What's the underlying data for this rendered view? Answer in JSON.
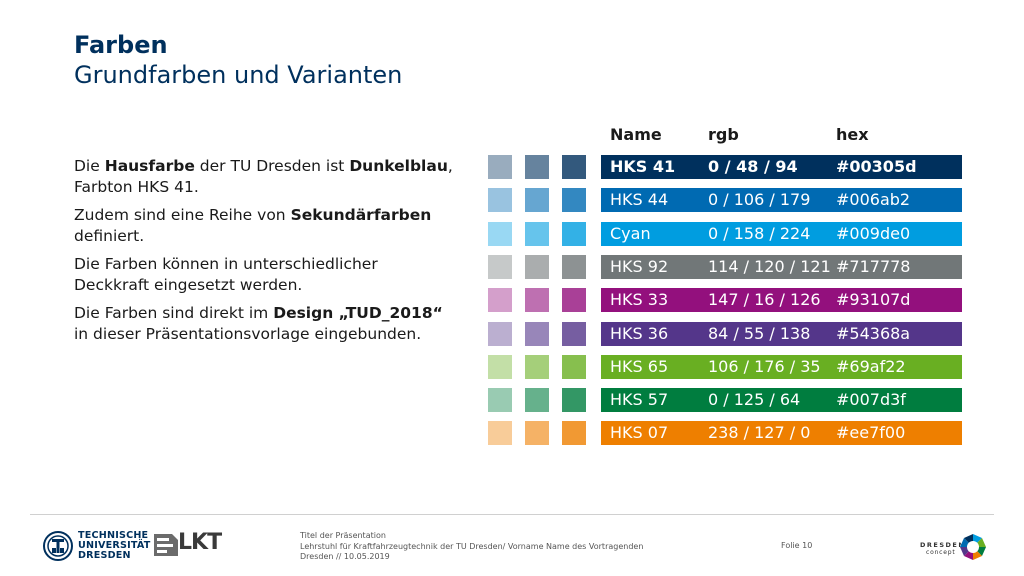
{
  "header": {
    "title": "Farben",
    "subtitle": "Grundfarben und Varianten"
  },
  "body_text": [
    {
      "runs": [
        {
          "t": "Die ",
          "b": false
        },
        {
          "t": "Hausfarbe",
          "b": true
        },
        {
          "t": " der TU Dresden ist ",
          "b": false
        },
        {
          "t": "Dunkelblau",
          "b": true
        },
        {
          "t": ", Farbton HKS 41.",
          "b": false
        }
      ]
    },
    {
      "runs": [
        {
          "t": "Zudem sind eine Reihe von ",
          "b": false
        },
        {
          "t": "Sekundärfarben",
          "b": true
        },
        {
          "t": " definiert.",
          "b": false
        }
      ]
    },
    {
      "runs": [
        {
          "t": "Die Farben können in unterschiedlicher Deckkraft eingesetzt werden.",
          "b": false
        }
      ]
    },
    {
      "runs": [
        {
          "t": "Die Farben sind direkt im ",
          "b": false
        },
        {
          "t": "Design „TUD_2018“",
          "b": true
        },
        {
          "t": " in dieser Präsentationsvorlage eingebunden.",
          "b": false
        }
      ]
    }
  ],
  "table": {
    "headers": {
      "name": "Name",
      "rgb": "rgb",
      "hex": "hex"
    },
    "rows": [
      {
        "name": "HKS 41",
        "rgb": "0 / 48 / 94",
        "hex": "#00305d",
        "color": "#00305d",
        "bold": true
      },
      {
        "name": "HKS 44",
        "rgb": "0 / 106 / 179",
        "hex": "#006ab2",
        "color": "#006ab2",
        "bold": false
      },
      {
        "name": "Cyan",
        "rgb": "0 / 158 / 224",
        "hex": "#009de0",
        "color": "#009de0",
        "bold": false
      },
      {
        "name": "HKS 92",
        "rgb": "114 / 120 / 121",
        "hex": "#717778",
        "color": "#717778",
        "bold": false
      },
      {
        "name": "HKS 33",
        "rgb": "147 / 16 / 126",
        "hex": "#93107d",
        "color": "#93107d",
        "bold": false
      },
      {
        "name": "HKS 36",
        "rgb": "84 / 55 / 138",
        "hex": "#54368a",
        "color": "#54368a",
        "bold": false
      },
      {
        "name": "HKS 65",
        "rgb": "106 / 176 / 35",
        "hex": "#69af22",
        "color": "#69af22",
        "bold": false
      },
      {
        "name": "HKS 57",
        "rgb": "0 / 125 / 64",
        "hex": "#007d3f",
        "color": "#007d3f",
        "bold": false
      },
      {
        "name": "HKS 07",
        "rgb": "238 / 127 / 0",
        "hex": "#ee7f00",
        "color": "#ee7f00",
        "bold": false
      }
    ],
    "opacities": [
      0.4,
      0.6,
      0.8
    ]
  },
  "footer": {
    "logo_tud_lines": [
      "TECHNISCHE",
      "UNIVERSITÄT",
      "DRESDEN"
    ],
    "logo_lkt": "LKT",
    "info_lines": [
      "Titel der Präsentation",
      "Lehrstuhl für Kraftfahrzeugtechnik der TU Dresden/  Vorname Name des Vortragenden",
      "Dresden // 10.05.2019"
    ],
    "slide_label": "Folie 10",
    "dresden_word": "DRESDEN",
    "dresden_sub": "concept"
  }
}
